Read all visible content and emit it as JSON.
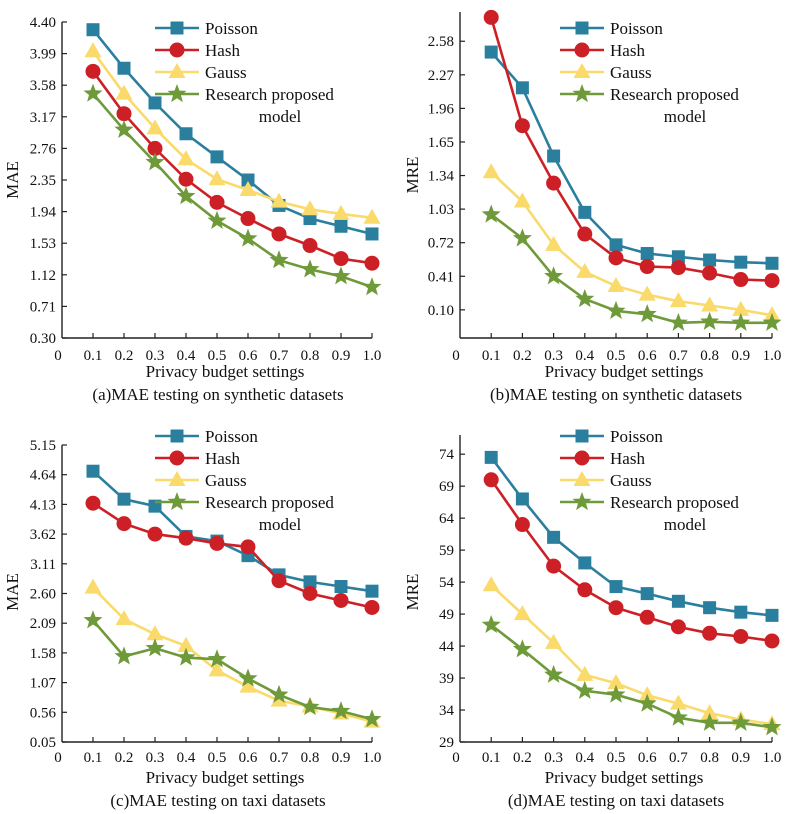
{
  "series_styles": [
    {
      "name": "Poisson",
      "color": "#2a7f9e",
      "marker": "square"
    },
    {
      "name": "Hash",
      "color": "#cc2026",
      "marker": "circle"
    },
    {
      "name": "Gauss",
      "color": "#fada6a",
      "marker": "triangle"
    },
    {
      "name": "Research proposed model",
      "color": "#6e9a3a",
      "marker": "star"
    }
  ],
  "chart_data": [
    {
      "type": "line",
      "caption": "(a)MAE testing on synthetic datasets",
      "xlabel": "Privacy budget settings",
      "ylabel": "MAE",
      "x_ticks": [
        "0",
        "0.1",
        "0.2",
        "0.3",
        "0.4",
        "0.5",
        "0.6",
        "0.7",
        "0.8",
        "0.9",
        "1.0"
      ],
      "y_ticks": [
        "0.30",
        "0.71",
        "1.12",
        "1.53",
        "1.94",
        "2.35",
        "2.76",
        "3.17",
        "3.58",
        "3.99",
        "4.40"
      ],
      "ylim": [
        0.3,
        4.4
      ],
      "legend_labels": [
        "Poisson",
        "Hash",
        "Gauss",
        "Research proposed",
        "model"
      ],
      "x": [
        0.1,
        0.2,
        0.3,
        0.4,
        0.5,
        0.6,
        0.7,
        0.8,
        0.9,
        1.0
      ],
      "series": [
        {
          "name": "Poisson",
          "values": [
            4.3,
            3.8,
            3.35,
            2.95,
            2.65,
            2.35,
            2.02,
            1.85,
            1.75,
            1.65
          ]
        },
        {
          "name": "Hash",
          "values": [
            3.76,
            3.21,
            2.76,
            2.36,
            2.06,
            1.85,
            1.65,
            1.5,
            1.33,
            1.27
          ]
        },
        {
          "name": "Gauss",
          "values": [
            4.02,
            3.47,
            3.02,
            2.62,
            2.36,
            2.22,
            2.07,
            1.97,
            1.91,
            1.86
          ]
        },
        {
          "name": "Research proposed model",
          "values": [
            3.47,
            3.0,
            2.58,
            2.14,
            1.82,
            1.59,
            1.31,
            1.19,
            1.1,
            0.96
          ]
        }
      ]
    },
    {
      "type": "line",
      "caption": "(b)MAE testing on synthetic datasets",
      "xlabel": "Privacy budget settings",
      "ylabel": "MRE",
      "x_ticks": [
        "0",
        "0.1",
        "0.2",
        "0.3",
        "0.4",
        "0.5",
        "0.6",
        "0.7",
        "0.8",
        "0.9",
        "1.0"
      ],
      "y_ticks": [
        "0.10",
        "0.41",
        "0.72",
        "1.03",
        "1.34",
        "1.65",
        "1.96",
        "2.27",
        "2.58"
      ],
      "ylim": [
        -0.16,
        2.85
      ],
      "legend_labels": [
        "Poisson",
        "Hash",
        "Gauss",
        "Research proposed",
        "model"
      ],
      "x": [
        0.1,
        0.2,
        0.3,
        0.4,
        0.5,
        0.6,
        0.7,
        0.8,
        0.9,
        1.0
      ],
      "series": [
        {
          "name": "Poisson",
          "values": [
            2.48,
            2.15,
            1.52,
            1.0,
            0.7,
            0.62,
            0.59,
            0.56,
            0.54,
            0.53
          ]
        },
        {
          "name": "Hash",
          "values": [
            2.8,
            1.8,
            1.27,
            0.8,
            0.58,
            0.5,
            0.49,
            0.44,
            0.38,
            0.37
          ]
        },
        {
          "name": "Gauss",
          "values": [
            1.37,
            1.1,
            0.7,
            0.45,
            0.32,
            0.24,
            0.18,
            0.14,
            0.1,
            0.05
          ]
        },
        {
          "name": "Research proposed model",
          "values": [
            0.98,
            0.76,
            0.41,
            0.2,
            0.09,
            0.06,
            -0.02,
            -0.01,
            -0.02,
            -0.02
          ]
        }
      ]
    },
    {
      "type": "line",
      "caption": "(c)MAE testing on taxi datasets",
      "xlabel": "Privacy budget settings",
      "ylabel": "MAE",
      "x_ticks": [
        "0",
        "0.1",
        "0.2",
        "0.3",
        "0.4",
        "0.5",
        "0.6",
        "0.7",
        "0.8",
        "0.9",
        "1.0"
      ],
      "y_ticks": [
        "0.05",
        "0.56",
        "1.07",
        "1.58",
        "2.09",
        "2.60",
        "3.11",
        "3.62",
        "4.13",
        "4.64",
        "5.15"
      ],
      "ylim": [
        0.05,
        5.15
      ],
      "legend_labels": [
        "Poisson",
        "Hash",
        "Gauss",
        "Research proposed",
        "model"
      ],
      "x": [
        0.1,
        0.2,
        0.3,
        0.4,
        0.5,
        0.6,
        0.7,
        0.8,
        0.9,
        1.0
      ],
      "series": [
        {
          "name": "Poisson",
          "values": [
            4.7,
            4.22,
            4.1,
            3.58,
            3.5,
            3.25,
            2.92,
            2.8,
            2.72,
            2.64
          ]
        },
        {
          "name": "Hash",
          "values": [
            4.15,
            3.8,
            3.62,
            3.55,
            3.46,
            3.4,
            2.82,
            2.6,
            2.48,
            2.36
          ]
        },
        {
          "name": "Gauss",
          "values": [
            2.7,
            2.16,
            1.9,
            1.7,
            1.28,
            1.0,
            0.76,
            0.66,
            0.54,
            0.4
          ]
        },
        {
          "name": "Research proposed model",
          "values": [
            2.14,
            1.52,
            1.66,
            1.5,
            1.47,
            1.14,
            0.86,
            0.65,
            0.58,
            0.44
          ]
        }
      ]
    },
    {
      "type": "line",
      "caption": "(d)MAE testing on taxi datasets",
      "xlabel": "Privacy budget settings",
      "ylabel": "MRE",
      "x_ticks": [
        "0",
        "0.1",
        "0.2",
        "0.3",
        "0.4",
        "0.5",
        "0.6",
        "0.7",
        "0.8",
        "0.9",
        "1.0"
      ],
      "y_ticks": [
        "29",
        "34",
        "39",
        "44",
        "49",
        "54",
        "59",
        "64",
        "69",
        "74"
      ],
      "ylim": [
        29,
        77
      ],
      "legend_labels": [
        "Poisson",
        "Hash",
        "Gauss",
        "Research proposed",
        "model"
      ],
      "x": [
        0.1,
        0.2,
        0.3,
        0.4,
        0.5,
        0.6,
        0.7,
        0.8,
        0.9,
        1.0
      ],
      "series": [
        {
          "name": "Poisson",
          "values": [
            73.5,
            67.0,
            61.0,
            57.0,
            53.3,
            52.2,
            51.0,
            50.0,
            49.3,
            48.8
          ]
        },
        {
          "name": "Hash",
          "values": [
            70.0,
            63.0,
            56.5,
            52.8,
            50.0,
            48.5,
            47.0,
            46.0,
            45.5,
            44.8
          ]
        },
        {
          "name": "Gauss",
          "values": [
            53.5,
            49.0,
            44.5,
            39.5,
            38.2,
            36.3,
            35.0,
            33.5,
            32.5,
            31.8
          ]
        },
        {
          "name": "Research proposed model",
          "values": [
            47.3,
            43.5,
            39.5,
            37.0,
            36.4,
            35.0,
            32.8,
            32.0,
            32.0,
            31.3
          ]
        }
      ]
    }
  ]
}
